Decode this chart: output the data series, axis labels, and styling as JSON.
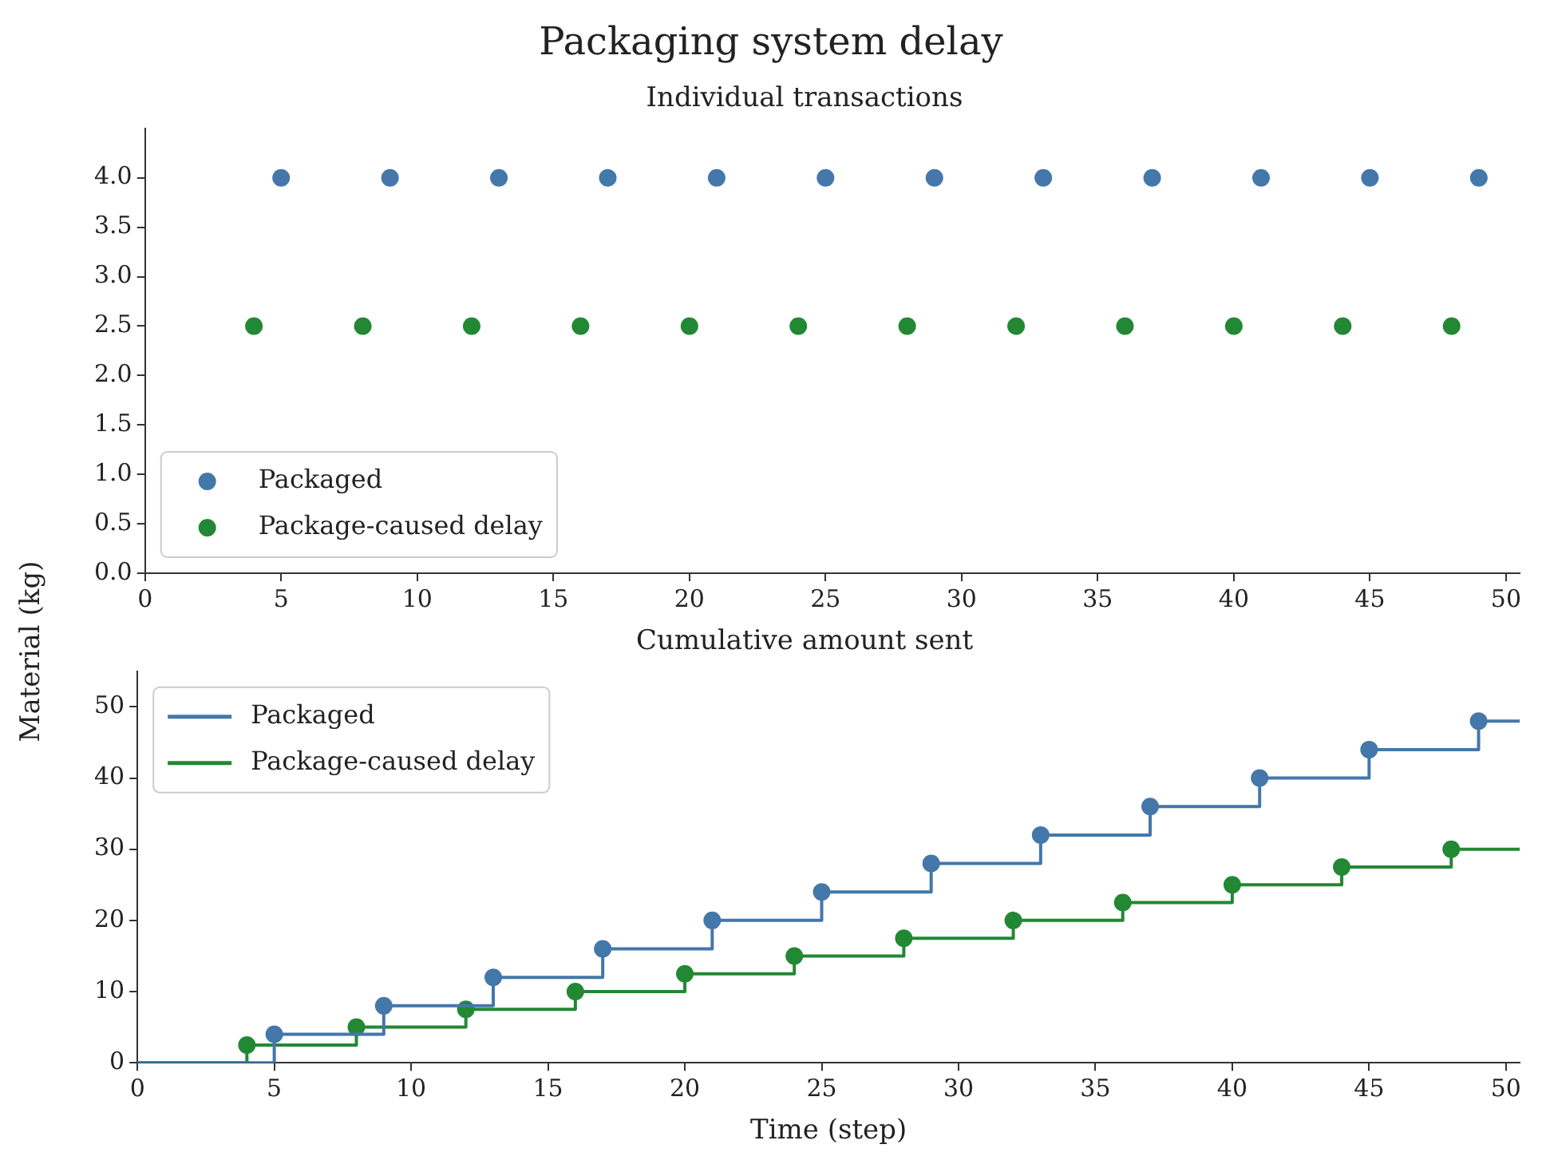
{
  "chart_data": [
    {
      "type": "scatter",
      "title": "Packaging system delay",
      "subtitle": "Individual transactions",
      "ylabel": "Material (kg)",
      "marker": "circle",
      "legend": "bottom left",
      "grid": false,
      "xlim": [
        0,
        50.5
      ],
      "xticks": [
        0,
        5,
        10,
        15,
        20,
        25,
        30,
        35,
        40,
        45,
        50
      ],
      "ylim": [
        0,
        4.5
      ],
      "yticks": [
        {
          "value": 0,
          "label": "0.0"
        },
        {
          "value": 0.5,
          "label": "0.5"
        },
        {
          "value": 1,
          "label": "1.0"
        },
        {
          "value": 1.5,
          "label": "1.5"
        },
        {
          "value": 2,
          "label": "2.0"
        },
        {
          "value": 2.5,
          "label": "2.5"
        },
        {
          "value": 3,
          "label": "3.0"
        },
        {
          "value": 3.5,
          "label": "3.5"
        },
        {
          "value": 4,
          "label": "4.0"
        }
      ],
      "series": [
        {
          "name": "Packaged",
          "color": "#4477aa",
          "x": [
            5,
            9,
            13,
            17,
            21,
            25,
            29,
            33,
            37,
            41,
            45,
            49
          ],
          "values": [
            4,
            4,
            4,
            4,
            4,
            4,
            4,
            4,
            4,
            4,
            4,
            4
          ]
        },
        {
          "name": "Package-caused delay",
          "color": "#228833",
          "x": [
            4,
            8,
            12,
            16,
            20,
            24,
            28,
            32,
            36,
            40,
            44,
            48
          ],
          "values": [
            2.5,
            2.5,
            2.5,
            2.5,
            2.5,
            2.5,
            2.5,
            2.5,
            2.5,
            2.5,
            2.5,
            2.5
          ]
        }
      ]
    },
    {
      "type": "step",
      "title": "Cumulative amount sent",
      "xlabel": "Time (step)",
      "legend": "top left",
      "grid": false,
      "xlim": [
        0,
        50.5
      ],
      "xticks": [
        0,
        5,
        10,
        15,
        20,
        25,
        30,
        35,
        40,
        45,
        50
      ],
      "ylim": [
        0,
        55
      ],
      "yticks": [
        0,
        10,
        20,
        30,
        40,
        50
      ],
      "series": [
        {
          "name": "Packaged",
          "color": "#4477aa",
          "x": [
            0,
            5,
            9,
            13,
            17,
            21,
            25,
            29,
            33,
            37,
            41,
            45,
            49,
            50.5
          ],
          "values": [
            0,
            4,
            8,
            12,
            16,
            20,
            24,
            28,
            32,
            36,
            40,
            44,
            48,
            48
          ]
        },
        {
          "name": "Package-caused delay",
          "color": "#228833",
          "x": [
            0,
            4,
            8,
            12,
            16,
            20,
            24,
            28,
            32,
            36,
            40,
            44,
            48,
            50.5
          ],
          "values": [
            0,
            2.5,
            5,
            7.5,
            10,
            12.5,
            15,
            17.5,
            20,
            22.5,
            25,
            27.5,
            30,
            30
          ]
        },
        {
          "type": "scatter",
          "marker": "circle",
          "color": "#4477aa",
          "x": [
            5,
            9,
            13,
            17,
            21,
            25,
            29,
            33,
            37,
            41,
            45,
            49
          ],
          "values": [
            4,
            8,
            12,
            16,
            20,
            24,
            28,
            32,
            36,
            40,
            44,
            48
          ]
        },
        {
          "type": "scatter",
          "marker": "circle",
          "color": "#228833",
          "x": [
            4,
            8,
            12,
            16,
            20,
            24,
            28,
            32,
            36,
            40,
            44,
            48
          ],
          "values": [
            2.5,
            5,
            7.5,
            10,
            12.5,
            15,
            17.5,
            20,
            22.5,
            25,
            27.5,
            30
          ]
        }
      ]
    }
  ]
}
